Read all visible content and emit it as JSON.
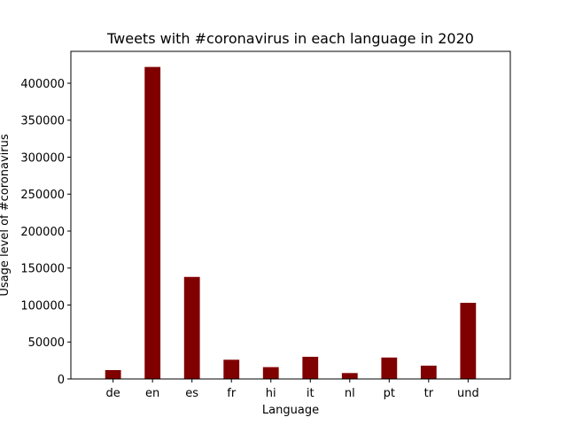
{
  "chart_data": {
    "type": "bar",
    "title": "Tweets with #coronavirus in each language in 2020",
    "xlabel": "Language",
    "ylabel": "Usage level of #coronavirus",
    "categories": [
      "de",
      "en",
      "es",
      "fr",
      "hi",
      "it",
      "nl",
      "pt",
      "tr",
      "und"
    ],
    "values": [
      12000,
      422000,
      138000,
      26000,
      16000,
      30000,
      8000,
      29000,
      18000,
      103000
    ],
    "ylim": [
      0,
      443100
    ],
    "yticks": [
      0,
      50000,
      100000,
      150000,
      200000,
      250000,
      300000,
      350000,
      400000
    ],
    "bar_color": "#800000",
    "grid": false,
    "legend": "none"
  }
}
